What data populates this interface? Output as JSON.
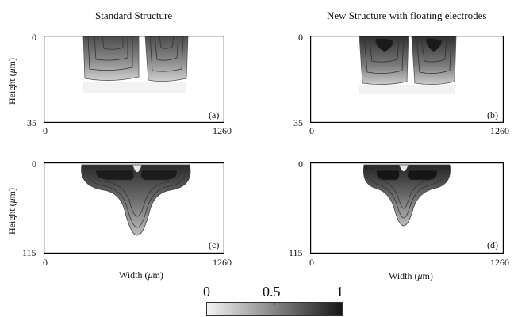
{
  "titles": {
    "left": "Standard Structure",
    "right": "New Structure with floating electrodes"
  },
  "axes": {
    "height_label": "Height (",
    "mu": "μ",
    "unit_tail": "m)",
    "width_label": "Width (",
    "top_y_min": "0",
    "top_y_max": "35",
    "bottom_y_min": "0",
    "bottom_y_max": "115",
    "x_min": "0",
    "x_max": "1260"
  },
  "panels": {
    "a": "(a)",
    "b": "(b)",
    "c": "(c)",
    "d": "(d)"
  },
  "colorbar": {
    "ticks": [
      "0",
      "0.5",
      "1"
    ],
    "range": [
      0,
      1
    ],
    "colors": {
      "low": "#f4f4f4",
      "high": "#151515"
    }
  }
}
